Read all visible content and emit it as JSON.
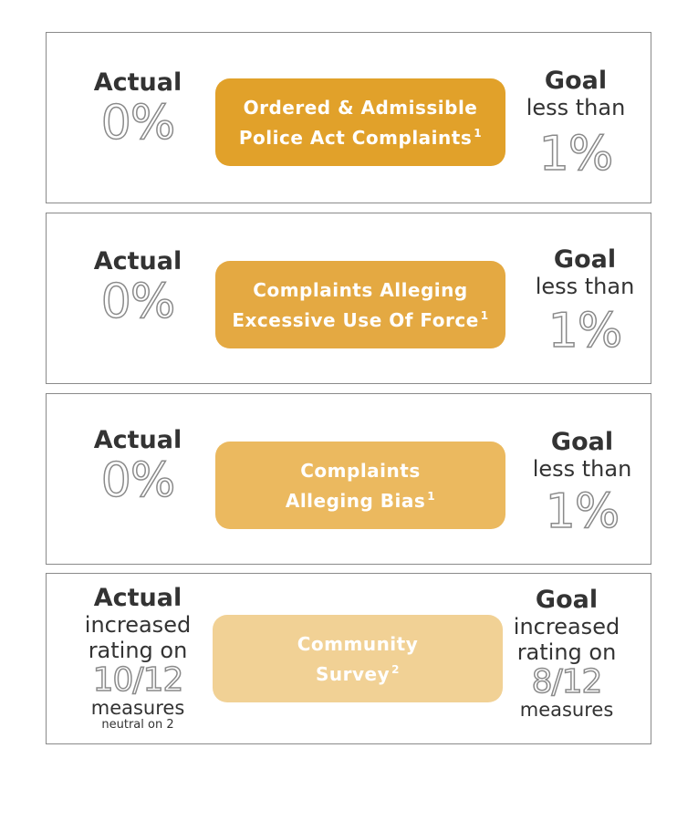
{
  "panels": [
    {
      "actual_label": "Actual",
      "actual_value": "0%",
      "measure_line1": "Ordered & Admissible",
      "measure_line2": "Police Act Complaints",
      "footnote": "1",
      "goal_label": "Goal",
      "goal_qualifier": "less than",
      "goal_value": "1%",
      "color": "#e1a12a"
    },
    {
      "actual_label": "Actual",
      "actual_value": "0%",
      "measure_line1": "Complaints Alleging",
      "measure_line2": "Excessive Use Of Force",
      "footnote": "1",
      "goal_label": "Goal",
      "goal_qualifier": "less than",
      "goal_value": "1%",
      "color": "#e4a942"
    },
    {
      "actual_label": "Actual",
      "actual_value": "0%",
      "measure_line1": "Complaints",
      "measure_line2": "Alleging Bias",
      "footnote": "1",
      "goal_label": "Goal",
      "goal_qualifier": "less than",
      "goal_value": "1%",
      "color": "#ebb95f"
    },
    {
      "actual_label": "Actual",
      "actual_line1": "increased",
      "actual_line2": "rating on",
      "actual_value": "10/12",
      "actual_line3": "measures",
      "actual_note": "neutral on 2",
      "measure_line1": "Community",
      "measure_line2": "Survey",
      "footnote": "2",
      "goal_label": "Goal",
      "goal_line1": "increased",
      "goal_line2": "rating on",
      "goal_value": "8/12",
      "goal_line3": "measures",
      "color": "#f1d195"
    }
  ]
}
